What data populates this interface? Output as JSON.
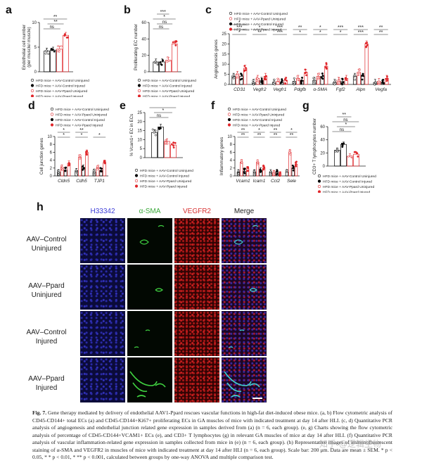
{
  "colors": {
    "ctrl_uninj": "#ffffff",
    "ctrl_inj": "#000000",
    "ppard_uninj": "#f2a0a0",
    "ppard_inj": "#e0262a",
    "star": "#111111"
  },
  "legend": {
    "a": [
      "HFD mice + AAV-Control Uninjured",
      "HFD mice + AAV-Control Injured",
      "HFD mice + AAV-Ppard Uninjured",
      "HFD mice + AAV-Ppard Injured"
    ],
    "b": [
      "HFD mice + AAV-Control Uninjured",
      "HFD mice + AAV-Control Injured",
      "HFD mice + AAV-Ppard Uninjured",
      "HFD mice + AAV-Ppard Injured"
    ],
    "c": [
      "HFD mice + AAV-Control Uninjured",
      "HFD mice + AAV-Ppard Uninjured",
      "HFD mice + AAV-Control Injured",
      "HFD mice + AAV-Ppard Injured"
    ],
    "d": [
      "HFD mice + AAV-Control Uninjured",
      "HFD mice + AAV-Ppard Uninjured",
      "HFD mice + AAV-Control Injured",
      "HFD mice + AAV-Ppard Injured"
    ],
    "e": [
      "HFD mice + AAV-Control Uninjured",
      "HFD mice + AAV-Control Injured",
      "HFD mice + AAV-Ppard Uninjured",
      "HFD mice + AAV-Ppard Injured"
    ],
    "f": [
      "HFD mice + AAV-Control Uninjured",
      "HFD mice + AAV-Ppard Uninjured",
      "HFD mice + AAV-Control Injured",
      "HFD mice + AAV-Ppard Injured"
    ],
    "g": [
      "HFD mice + AAV-Control Uninjured",
      "HFD mice + AAV-Control Injured",
      "HFD mice + AAV-Ppard Uninjured",
      "HFD mice + AAV-Ppard Injured"
    ]
  },
  "chart_data": [
    {
      "panel": "a",
      "type": "bar",
      "ylabel": "Endothelial cell number\n(per muscle/ muscle)",
      "ylim": [
        0,
        10
      ],
      "yticks": [
        "0",
        "5",
        "10"
      ],
      "series": [
        {
          "name": "HFD mice + AAV-Control Uninjured",
          "values": [
            4.2
          ]
        },
        {
          "name": "HFD mice + AAV-Control Injured",
          "values": [
            4.4
          ]
        },
        {
          "name": "HFD mice + AAV-Ppard Uninjured",
          "values": [
            4.6
          ]
        },
        {
          "name": "HFD mice + AAV-Ppard Injured",
          "values": [
            7.4
          ]
        }
      ],
      "annotations": [
        "ns",
        "**",
        "**"
      ]
    },
    {
      "panel": "b",
      "type": "bar",
      "ylabel": "Proliferating EC number",
      "ylim": [
        0,
        60
      ],
      "yticks": [
        "0",
        "20",
        "40",
        "60"
      ],
      "series": [
        {
          "name": "HFD mice + AAV-Control Uninjured",
          "values": [
            12
          ]
        },
        {
          "name": "HFD mice + AAV-Control Injured",
          "values": [
            12
          ]
        },
        {
          "name": "HFD mice + AAV-Ppard Uninjured",
          "values": [
            14
          ]
        },
        {
          "name": "HFD mice + AAV-Ppard Injured",
          "values": [
            34
          ]
        }
      ],
      "annotations": [
        "ns",
        "ns",
        "*",
        "***"
      ]
    },
    {
      "panel": "c",
      "type": "bar",
      "ylabel": "Angiogenesis genes",
      "ylim": [
        0,
        25
      ],
      "yticks": [
        "0",
        "5",
        "10",
        "15",
        "20",
        "25"
      ],
      "categories": [
        "CD31",
        "Vegfr2",
        "Vegfr1",
        "Pdgfb",
        "α-SMA",
        "Fgf2",
        "Alpn",
        "Vegfa"
      ],
      "series": [
        {
          "name": "HFD mice + AAV-Control Uninjured",
          "values": [
            4,
            1,
            1,
            1.5,
            2,
            1,
            4,
            1
          ]
        },
        {
          "name": "HFD mice + AAV-Ppard Uninjured",
          "values": [
            5,
            3,
            1.5,
            3,
            4,
            2,
            6,
            1.5
          ]
        },
        {
          "name": "HFD mice + AAV-Control Injured",
          "values": [
            4,
            2,
            1,
            2,
            4,
            1.5,
            4,
            1
          ]
        },
        {
          "name": "HFD mice + AAV-Ppard Injured",
          "values": [
            8,
            4,
            2,
            6,
            9,
            3,
            20,
            3
          ]
        }
      ],
      "annotations": [
        "*",
        "**",
        "***",
        "*",
        "*",
        "*",
        "***",
        "**",
        "***",
        "*",
        "***",
        "**",
        "*",
        "***",
        "***",
        "**",
        "*"
      ]
    },
    {
      "panel": "d",
      "type": "bar",
      "ylabel": "Cell junction genes",
      "ylim": [
        0,
        10
      ],
      "yticks": [
        "0",
        "2",
        "4",
        "6",
        "8",
        "10"
      ],
      "categories": [
        "Cldn5",
        "Cdh5",
        "TJP1"
      ],
      "series": [
        {
          "name": "HFD mice + AAV-Control Uninjured",
          "values": [
            1.0,
            1.3,
            1.0
          ]
        },
        {
          "name": "HFD mice + AAV-Ppard Uninjured",
          "values": [
            2.2,
            4.8,
            2.0
          ]
        },
        {
          "name": "HFD mice + AAV-Control Injured",
          "values": [
            1.5,
            2.2,
            1.4
          ]
        },
        {
          "name": "HFD mice + AAV-Ppard Injured",
          "values": [
            3.2,
            6.0,
            3.4
          ]
        }
      ],
      "annotations": [
        "*",
        "*",
        "*",
        "*",
        "**"
      ]
    },
    {
      "panel": "e",
      "type": "bar",
      "ylabel": "% Vcam1+ EC in ECs",
      "ylim": [
        0,
        25
      ],
      "yticks": [
        "0",
        "5",
        "10",
        "15",
        "20",
        "25"
      ],
      "series": [
        {
          "name": "HFD mice + AAV-Control Uninjured",
          "values": [
            14
          ]
        },
        {
          "name": "HFD mice + AAV-Control Injured",
          "values": [
            17
          ]
        },
        {
          "name": "HFD mice + AAV-Ppard Uninjured",
          "values": [
            9
          ]
        },
        {
          "name": "HFD mice + AAV-Ppard Injured",
          "values": [
            7
          ]
        }
      ],
      "annotations": [
        "ns",
        "*",
        "**",
        "***"
      ]
    },
    {
      "panel": "f",
      "type": "bar",
      "ylabel": "Inflammatory genes",
      "ylim": [
        0,
        10
      ],
      "yticks": [
        "0",
        "2",
        "4",
        "6",
        "8",
        "10"
      ],
      "categories": [
        "Vcam1",
        "Icam1",
        "Ccl2",
        "Sele"
      ],
      "series": [
        {
          "name": "HFD mice + AAV-Control Uninjured",
          "values": [
            1,
            1,
            1,
            1
          ]
        },
        {
          "name": "HFD mice + AAV-Ppard Uninjured",
          "values": [
            3.5,
            3.5,
            0.8,
            6
          ]
        },
        {
          "name": "HFD mice + AAV-Control Injured",
          "values": [
            1.2,
            1.5,
            1,
            2
          ]
        },
        {
          "name": "HFD mice + AAV-Ppard Injured",
          "values": [
            1.8,
            2,
            0.5,
            3
          ]
        }
      ],
      "annotations": [
        "**",
        "**",
        "**",
        "**",
        "**",
        "*",
        "**",
        "*"
      ]
    },
    {
      "panel": "g",
      "type": "bar",
      "ylabel": "CD3+ T lymphocytes number",
      "ylim": [
        0,
        60
      ],
      "yticks": [
        "0",
        "20",
        "40",
        "60"
      ],
      "series": [
        {
          "name": "HFD mice + AAV-Control Uninjured",
          "values": [
            24
          ]
        },
        {
          "name": "HFD mice + AAV-Control Injured",
          "values": [
            33
          ]
        },
        {
          "name": "HFD mice + AAV-Ppard Uninjured",
          "values": [
            15
          ]
        },
        {
          "name": "HFD mice + AAV-Ppard Injured",
          "values": [
            18
          ]
        }
      ],
      "annotations": [
        "ns",
        "*",
        "ns",
        "**"
      ]
    }
  ],
  "micro": {
    "columns": [
      "H33342",
      "α-SMA",
      "VEGFR2",
      "Merge"
    ],
    "column_colors": [
      "#3d3dd8",
      "#3aa83a",
      "#d83030",
      "#222222"
    ],
    "rows": [
      [
        "AAV–Control",
        "Uninjured"
      ],
      [
        "AAV–Ppard",
        "Uninjured"
      ],
      [
        "AAV–Control",
        "Injured"
      ],
      [
        "AAV–Ppard",
        "Injured"
      ]
    ]
  },
  "caption": {
    "fig_label": "Fig. 7.",
    "text": "Gene therapy mediated by delivery of endothelial AAV1-Ppard rescues vascular functions in high-fat diet-induced obese mice. (a, b) Flow cytometric analysis of CD45-CD144+ total ECs (a) and CD45-CD144+Ki67+ proliferating ECs in GA muscles of mice with indicated treatment at day 14 after HLI. (c, d) Quantitative PCR analysis of angiogenesis and endothelial junction related gene expression in samples derived from (a) (n = 6, each group). (e, g) Charts showing the flow cytometric analysis of percentage of CD45-CD144+VCAM1+ ECs (e), and CD3+ T lymphocytes (g) in relevant GA muscles of mice at day 14 after HLI. (f) Quantitative PCR analysis of vascular inflammation-related gene expression in samples collected from mice in (e) (n = 6, each group). (h) Representative images of immunofluorescent staining of α-SMA and VEGFR2 in muscles of mice with indicated treatment at day 14 after HLI (n = 6, each group). Scale bar: 200 μm. Data are mean ± SEM. * p < 0.05, * * p < 0.01, * ** p < 0.001, calculated between groups by one-way ANOVA and multiple comparison test."
  },
  "watermark": "知乎 @逻辑生物"
}
